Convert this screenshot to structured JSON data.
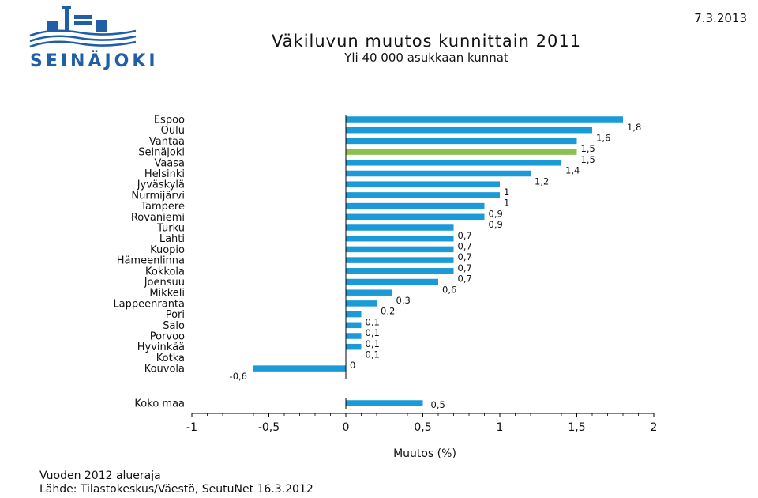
{
  "header": {
    "logo_text": "SEINÄJOKI",
    "title": "Väkiluvun muutos kunnittain 2011",
    "subtitle": "Yli 40 000 asukkaan kunnat",
    "date": "7.3.2013"
  },
  "footer": {
    "note1": "Vuoden 2012 alueraja",
    "note2": "Lähde: Tilastokeskus/Väestö, SeutuNet 16.3.2012"
  },
  "colors": {
    "bar": "#1a9ad6",
    "highlight": "#8cc151",
    "axis": "#000000"
  },
  "chart_data": {
    "type": "bar",
    "orientation": "horizontal",
    "title": "Väkiluvun muutos kunnittain 2011",
    "subtitle": "Yli 40 000 asukkaan kunnat",
    "xlabel": "Muutos (%)",
    "xlim": [
      -1,
      2
    ],
    "xticks": [
      "-1",
      "-0,5",
      "0",
      "0,5",
      "1",
      "1,5",
      "2"
    ],
    "xtick_values": [
      -1,
      -0.5,
      0,
      0.5,
      1,
      1.5,
      2
    ],
    "highlight": "Seinäjoki",
    "categories": [
      "Espoo",
      "Oulu",
      "Vantaa",
      "Seinäjoki",
      "Vaasa",
      "Helsinki",
      "Jyväskylä",
      "Nurmijärvi",
      "Tampere",
      "Rovaniemi",
      "Turku",
      "Lahti",
      "Kuopio",
      "Hämeenlinna",
      "Kokkola",
      "Joensuu",
      "Mikkeli",
      "Lappeenranta",
      "Pori",
      "Salo",
      "Porvoo",
      "Hyvinkää",
      "Kotka",
      "Kouvola"
    ],
    "values": [
      1.8,
      1.6,
      1.5,
      1.5,
      1.4,
      1.2,
      1.0,
      1.0,
      0.9,
      0.9,
      0.7,
      0.7,
      0.7,
      0.7,
      0.7,
      0.6,
      0.3,
      0.2,
      0.1,
      0.1,
      0.1,
      0.1,
      0.0,
      -0.6
    ],
    "labels": [
      "1,8",
      "1,6",
      "1,5",
      "1,5",
      "1,4",
      "1,2",
      "1",
      "1",
      "0,9",
      "0,9",
      "0,7",
      "0,7",
      "0,7",
      "0,7",
      "0,7",
      "0,6",
      "0,3",
      "0,2",
      "0,1",
      "0,1",
      "0,1",
      "0,1",
      "0",
      "-0,6"
    ],
    "total": {
      "category": "Koko maa",
      "value": 0.5,
      "label": "0,5"
    }
  }
}
